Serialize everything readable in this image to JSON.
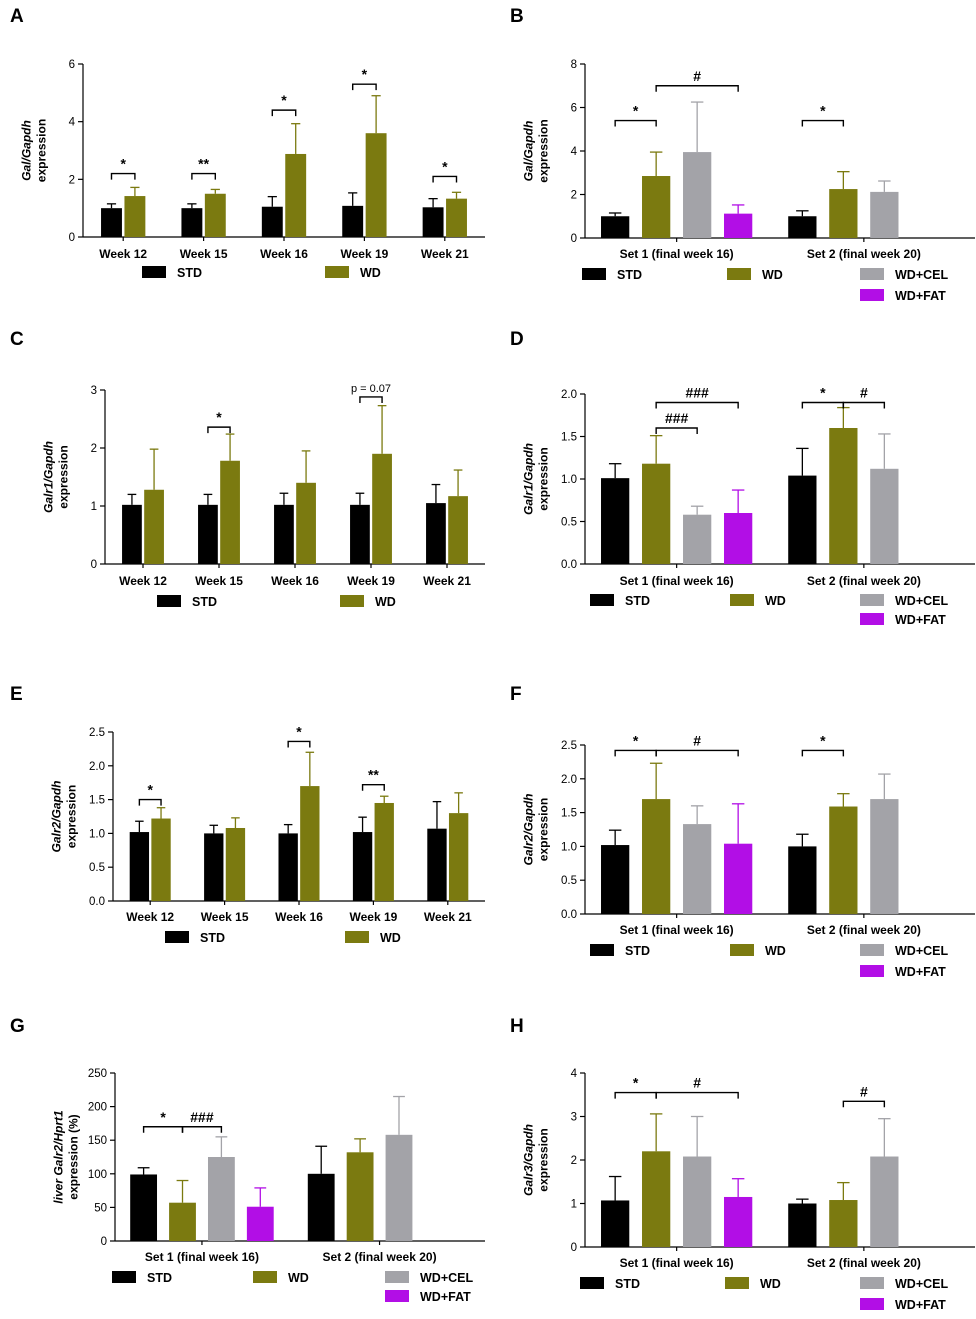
{
  "figure": {
    "colors": {
      "STD": "#000000",
      "WD": "#7b7a10",
      "WD+CEL": "#a3a3a8",
      "WD+FAT": "#b20ee6",
      "text": "#000000",
      "axis": "#000000"
    }
  },
  "chart_data": [
    {
      "id": "A",
      "letter": "A",
      "type": "bar",
      "ylabel_lines": [
        "Gal/Gapdh",
        "expression"
      ],
      "ylim": [
        0,
        6
      ],
      "yticks": [
        0,
        2,
        4,
        6
      ],
      "decimals": 0,
      "categories": [
        "Week 12",
        "Week 15",
        "Week 16",
        "Week 19",
        "Week 21"
      ],
      "series": [
        {
          "name": "STD",
          "values": [
            1.0,
            1.0,
            1.05,
            1.08,
            1.03
          ],
          "errors": [
            0.15,
            0.15,
            0.35,
            0.45,
            0.3
          ]
        },
        {
          "name": "WD",
          "values": [
            1.42,
            1.5,
            2.88,
            3.6,
            1.33
          ],
          "errors": [
            0.3,
            0.15,
            1.05,
            1.3,
            0.22
          ]
        }
      ],
      "legend": [
        "STD",
        "WD"
      ],
      "brackets": [
        {
          "from": [
            0,
            0
          ],
          "to": [
            0,
            1
          ],
          "y": 2.2,
          "label": "*"
        },
        {
          "from": [
            1,
            0
          ],
          "to": [
            1,
            1
          ],
          "y": 2.2,
          "label": "**"
        },
        {
          "from": [
            2,
            0
          ],
          "to": [
            2,
            1
          ],
          "y": 4.4,
          "label": "*"
        },
        {
          "from": [
            3,
            0
          ],
          "to": [
            3,
            1
          ],
          "y": 5.3,
          "label": "*"
        },
        {
          "from": [
            4,
            0
          ],
          "to": [
            4,
            1
          ],
          "y": 2.1,
          "label": "*"
        }
      ]
    },
    {
      "id": "B",
      "letter": "B",
      "type": "bar",
      "ylabel_lines": [
        "Gal/Gapdh",
        "expression"
      ],
      "ylim": [
        0,
        8
      ],
      "yticks": [
        0,
        2,
        4,
        6,
        8
      ],
      "decimals": 0,
      "categories": [
        "Set 1 (final week 16)",
        "Set 2 (final week 20)"
      ],
      "series": [
        {
          "name": "STD",
          "values": [
            1.0,
            1.0
          ],
          "errors": [
            0.15,
            0.25
          ]
        },
        {
          "name": "WD",
          "values": [
            2.85,
            2.25
          ],
          "errors": [
            1.1,
            0.8
          ]
        },
        {
          "name": "WD+CEL",
          "values": [
            3.95,
            2.12
          ],
          "errors": [
            2.3,
            0.5
          ]
        },
        {
          "name": "WD+FAT",
          "values": [
            1.12,
            null
          ],
          "errors": [
            0.4,
            null
          ]
        }
      ],
      "legend": [
        "STD",
        "WD",
        "WD+CEL",
        "WD+FAT"
      ],
      "brackets": [
        {
          "from": [
            0,
            0
          ],
          "to": [
            0,
            1
          ],
          "y": 5.4,
          "label": "*"
        },
        {
          "from": [
            0,
            1
          ],
          "to": [
            0,
            3
          ],
          "y": 7.0,
          "label": "#"
        },
        {
          "from": [
            1,
            0
          ],
          "to": [
            1,
            1
          ],
          "y": 5.4,
          "label": "*"
        }
      ]
    },
    {
      "id": "C",
      "letter": "C",
      "type": "bar",
      "ylabel_lines": [
        "Galr1/Gapdh",
        "expression"
      ],
      "ylim": [
        0,
        3
      ],
      "yticks": [
        0,
        1,
        2,
        3
      ],
      "decimals": 0,
      "categories": [
        "Week 12",
        "Week 15",
        "Week 16",
        "Week 19",
        "Week 21"
      ],
      "series": [
        {
          "name": "STD",
          "values": [
            1.02,
            1.02,
            1.02,
            1.02,
            1.05
          ],
          "errors": [
            0.18,
            0.18,
            0.2,
            0.2,
            0.32
          ]
        },
        {
          "name": "WD",
          "values": [
            1.28,
            1.78,
            1.4,
            1.9,
            1.17
          ],
          "errors": [
            0.7,
            0.46,
            0.55,
            0.83,
            0.45
          ]
        }
      ],
      "legend": [
        "STD",
        "WD"
      ],
      "brackets": [
        {
          "from": [
            1,
            0
          ],
          "to": [
            1,
            1
          ],
          "y": 2.36,
          "label": "*"
        },
        {
          "from": [
            3,
            0
          ],
          "to": [
            3,
            1
          ],
          "y": 2.88,
          "label": "p = 0.07"
        }
      ]
    },
    {
      "id": "D",
      "letter": "D",
      "type": "bar",
      "ylabel_lines": [
        "Galr1/Gapdh",
        "expression"
      ],
      "ylim": [
        0,
        2.0
      ],
      "yticks": [
        0,
        0.5,
        1.0,
        1.5,
        2.0
      ],
      "decimals": 1,
      "categories": [
        "Set 1 (final week 16)",
        "Set 2 (final week 20)"
      ],
      "series": [
        {
          "name": "STD",
          "values": [
            1.01,
            1.04
          ],
          "errors": [
            0.17,
            0.32
          ]
        },
        {
          "name": "WD",
          "values": [
            1.18,
            1.6
          ],
          "errors": [
            0.33,
            0.24
          ]
        },
        {
          "name": "WD+CEL",
          "values": [
            0.58,
            1.12
          ],
          "errors": [
            0.1,
            0.41
          ]
        },
        {
          "name": "WD+FAT",
          "values": [
            0.6,
            null
          ],
          "errors": [
            0.27,
            null
          ]
        }
      ],
      "legend": [
        "STD",
        "WD",
        "WD+CEL",
        "WD+FAT"
      ],
      "brackets": [
        {
          "from": [
            0,
            1
          ],
          "to": [
            0,
            2
          ],
          "y": 1.6,
          "label": "###"
        },
        {
          "from": [
            0,
            1
          ],
          "to": [
            0,
            3
          ],
          "y": 1.9,
          "label": "###"
        },
        {
          "from": [
            1,
            0
          ],
          "to": [
            1,
            1
          ],
          "y": 1.9,
          "label": "*"
        },
        {
          "from": [
            1,
            1
          ],
          "to": [
            1,
            2
          ],
          "y": 1.9,
          "label": "#"
        }
      ]
    },
    {
      "id": "E",
      "letter": "E",
      "type": "bar",
      "ylabel_lines": [
        "Galr2/Gapdh",
        "expression"
      ],
      "ylim": [
        0,
        2.5
      ],
      "yticks": [
        0,
        0.5,
        1.0,
        1.5,
        2.0,
        2.5
      ],
      "decimals": 1,
      "categories": [
        "Week 12",
        "Week 15",
        "Week 16",
        "Week 19",
        "Week 21"
      ],
      "series": [
        {
          "name": "STD",
          "values": [
            1.02,
            1.0,
            1.0,
            1.02,
            1.07
          ],
          "errors": [
            0.16,
            0.12,
            0.13,
            0.22,
            0.4
          ]
        },
        {
          "name": "WD",
          "values": [
            1.22,
            1.08,
            1.7,
            1.45,
            1.3
          ],
          "errors": [
            0.16,
            0.15,
            0.5,
            0.1,
            0.3
          ]
        }
      ],
      "legend": [
        "STD",
        "WD"
      ],
      "brackets": [
        {
          "from": [
            0,
            0
          ],
          "to": [
            0,
            1
          ],
          "y": 1.5,
          "label": "*"
        },
        {
          "from": [
            2,
            0
          ],
          "to": [
            2,
            1
          ],
          "y": 2.36,
          "label": "*"
        },
        {
          "from": [
            3,
            0
          ],
          "to": [
            3,
            1
          ],
          "y": 1.72,
          "label": "**"
        }
      ]
    },
    {
      "id": "F",
      "letter": "F",
      "type": "bar",
      "ylabel_lines": [
        "Galr2/Gapdh",
        "expression"
      ],
      "ylim": [
        0,
        2.5
      ],
      "yticks": [
        0,
        0.5,
        1.0,
        1.5,
        2.0,
        2.5
      ],
      "decimals": 1,
      "categories": [
        "Set 1 (final week 16)",
        "Set 2 (final week 20)"
      ],
      "series": [
        {
          "name": "STD",
          "values": [
            1.02,
            1.0
          ],
          "errors": [
            0.22,
            0.18
          ]
        },
        {
          "name": "WD",
          "values": [
            1.7,
            1.59
          ],
          "errors": [
            0.53,
            0.19
          ]
        },
        {
          "name": "WD+CEL",
          "values": [
            1.33,
            1.7
          ],
          "errors": [
            0.27,
            0.37
          ]
        },
        {
          "name": "WD+FAT",
          "values": [
            1.04,
            null
          ],
          "errors": [
            0.59,
            null
          ]
        }
      ],
      "legend": [
        "STD",
        "WD",
        "WD+CEL",
        "WD+FAT"
      ],
      "brackets": [
        {
          "from": [
            0,
            0
          ],
          "to": [
            0,
            1
          ],
          "y": 2.42,
          "label": "*"
        },
        {
          "from": [
            0,
            1
          ],
          "to": [
            0,
            3
          ],
          "y": 2.42,
          "label": "#"
        },
        {
          "from": [
            1,
            0
          ],
          "to": [
            1,
            1
          ],
          "y": 2.42,
          "label": "*"
        }
      ]
    },
    {
      "id": "G",
      "letter": "G",
      "type": "bar",
      "ylabel_lines": [
        "liver Galr2/Hprt1",
        "expression (%)"
      ],
      "ylim": [
        0,
        250
      ],
      "yticks": [
        0,
        50,
        100,
        150,
        200,
        250
      ],
      "decimals": 0,
      "categories": [
        "Set 1 (final week 16)",
        "Set 2 (final week 20)"
      ],
      "series": [
        {
          "name": "STD",
          "values": [
            99,
            100
          ],
          "errors": [
            10,
            41
          ]
        },
        {
          "name": "WD",
          "values": [
            57,
            132
          ],
          "errors": [
            33,
            20
          ]
        },
        {
          "name": "WD+CEL",
          "values": [
            125,
            158
          ],
          "errors": [
            30,
            57
          ]
        },
        {
          "name": "WD+FAT",
          "values": [
            51,
            null
          ],
          "errors": [
            28,
            null
          ]
        }
      ],
      "legend": [
        "STD",
        "WD",
        "WD+CEL",
        "WD+FAT"
      ],
      "brackets": [
        {
          "from": [
            0,
            0
          ],
          "to": [
            0,
            1
          ],
          "y": 170,
          "label": "*"
        },
        {
          "from": [
            0,
            1
          ],
          "to": [
            0,
            2
          ],
          "y": 170,
          "label": "###"
        }
      ]
    },
    {
      "id": "H",
      "letter": "H",
      "type": "bar",
      "ylabel_lines": [
        "Galr3/Gapdh",
        "expression"
      ],
      "ylim": [
        0,
        4
      ],
      "yticks": [
        0,
        1,
        2,
        3,
        4
      ],
      "decimals": 0,
      "categories": [
        "Set 1 (final week 16)",
        "Set 2 (final week 20)"
      ],
      "series": [
        {
          "name": "STD",
          "values": [
            1.07,
            1.0
          ],
          "errors": [
            0.55,
            0.1
          ]
        },
        {
          "name": "WD",
          "values": [
            2.2,
            1.08
          ],
          "errors": [
            0.86,
            0.4
          ]
        },
        {
          "name": "WD+CEL",
          "values": [
            2.08,
            2.08
          ],
          "errors": [
            0.92,
            0.87
          ]
        },
        {
          "name": "WD+FAT",
          "values": [
            1.15,
            null
          ],
          "errors": [
            0.42,
            null
          ]
        }
      ],
      "legend": [
        "STD",
        "WD",
        "WD+CEL",
        "WD+FAT"
      ],
      "brackets": [
        {
          "from": [
            0,
            0
          ],
          "to": [
            0,
            1
          ],
          "y": 3.55,
          "label": "*"
        },
        {
          "from": [
            0,
            1
          ],
          "to": [
            0,
            3
          ],
          "y": 3.55,
          "label": "#"
        },
        {
          "from": [
            1,
            1
          ],
          "to": [
            1,
            2
          ],
          "y": 3.35,
          "label": "#"
        }
      ]
    }
  ]
}
